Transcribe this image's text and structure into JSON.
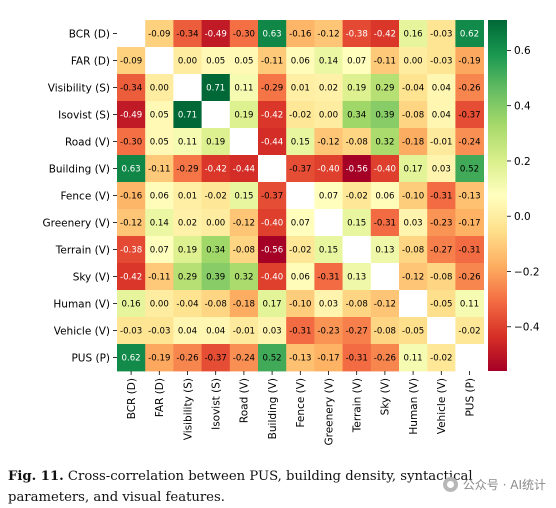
{
  "chart_data": {
    "type": "heatmap",
    "rows": [
      "BCR (D)",
      "FAR (D)",
      "Visibility (S)",
      "Isovist (S)",
      "Road (V)",
      "Building (V)",
      "Fence (V)",
      "Greenery (V)",
      "Terrain (V)",
      "Sky (V)",
      "Human (V)",
      "Vehicle (V)",
      "PUS (P)"
    ],
    "columns": [
      "BCR (D)",
      "FAR (D)",
      "Visibility (S)",
      "Isovist (S)",
      "Road (V)",
      "Building (V)",
      "Fence (V)",
      "Greenery (V)",
      "Terrain (V)",
      "Sky (V)",
      "Human (V)",
      "Vehicle (V)",
      "PUS (P)"
    ],
    "values": [
      [
        null,
        -0.09,
        -0.34,
        -0.49,
        -0.3,
        0.63,
        -0.16,
        -0.12,
        -0.38,
        -0.42,
        0.16,
        -0.03,
        0.62
      ],
      [
        -0.09,
        null,
        -0.0,
        0.05,
        0.05,
        -0.11,
        0.06,
        0.14,
        0.07,
        -0.11,
        -0.0,
        -0.03,
        -0.19
      ],
      [
        -0.34,
        -0.0,
        null,
        0.71,
        0.11,
        -0.29,
        0.01,
        0.02,
        0.19,
        0.29,
        -0.04,
        0.04,
        -0.26
      ],
      [
        -0.49,
        0.05,
        0.71,
        null,
        0.19,
        -0.42,
        -0.02,
        -0.0,
        0.34,
        0.39,
        -0.08,
        0.04,
        -0.37
      ],
      [
        -0.3,
        0.05,
        0.11,
        0.19,
        null,
        -0.44,
        0.15,
        -0.12,
        -0.08,
        0.32,
        -0.18,
        -0.01,
        -0.24
      ],
      [
        0.63,
        -0.11,
        -0.29,
        -0.42,
        -0.44,
        null,
        -0.37,
        -0.4,
        -0.56,
        -0.4,
        0.17,
        0.03,
        0.52
      ],
      [
        -0.16,
        0.06,
        0.01,
        -0.02,
        0.15,
        -0.37,
        null,
        0.07,
        -0.02,
        0.06,
        -0.1,
        -0.31,
        -0.13
      ],
      [
        -0.12,
        0.14,
        0.02,
        -0.0,
        -0.12,
        -0.4,
        0.07,
        null,
        0.15,
        -0.31,
        0.03,
        -0.23,
        -0.17
      ],
      [
        -0.38,
        0.07,
        0.19,
        0.34,
        -0.08,
        -0.56,
        -0.02,
        0.15,
        null,
        0.13,
        -0.08,
        -0.27,
        -0.31
      ],
      [
        -0.42,
        -0.11,
        0.29,
        0.39,
        0.32,
        -0.4,
        0.06,
        -0.31,
        0.13,
        null,
        -0.12,
        -0.08,
        -0.26
      ],
      [
        0.16,
        -0.0,
        -0.04,
        -0.08,
        -0.18,
        0.17,
        -0.1,
        0.03,
        -0.08,
        -0.12,
        null,
        -0.05,
        0.11
      ],
      [
        -0.03,
        -0.03,
        0.04,
        0.04,
        -0.01,
        0.03,
        -0.31,
        -0.23,
        -0.27,
        -0.08,
        -0.05,
        null,
        -0.02
      ],
      [
        0.62,
        -0.19,
        -0.26,
        -0.37,
        -0.24,
        0.52,
        -0.13,
        -0.17,
        -0.31,
        -0.26,
        0.11,
        -0.02,
        null
      ]
    ],
    "colorbar": {
      "vmin": -0.56,
      "vmax": 0.71,
      "ticks": [
        0.6,
        0.4,
        0.2,
        0.0,
        -0.2,
        -0.4
      ],
      "tick_labels": [
        "0.6",
        "0.4",
        "0.2",
        "0.0",
        "−0.2",
        "−0.4"
      ],
      "colormap": "RdYlGn",
      "colors": [
        "#a50026",
        "#d73027",
        "#f46d43",
        "#fdae61",
        "#fee08b",
        "#ffffbf",
        "#d9ef8b",
        "#a6d96a",
        "#66bd63",
        "#1a9850",
        "#006837"
      ]
    },
    "grid": false
  },
  "caption": {
    "label": "Fig. 11.",
    "text": "Cross-correlation between PUS, building density, syntactical parameters, and visual features."
  },
  "watermark": "公众号 · AI统计"
}
